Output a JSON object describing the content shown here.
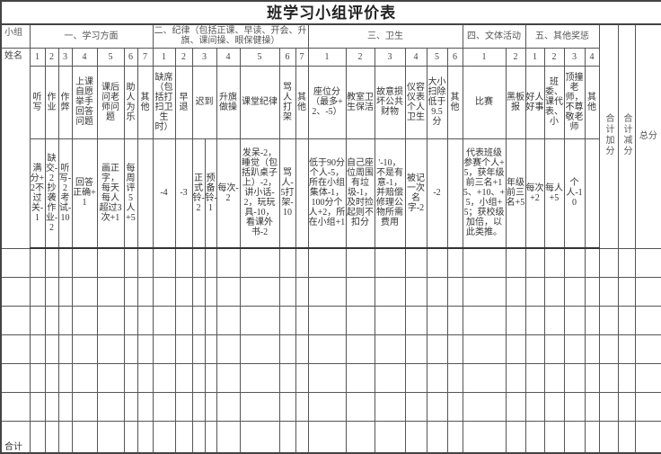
{
  "title": "班学习小组评价表",
  "header": {
    "group_label": "小组",
    "name_label": "姓名",
    "total_plus": "合计加分",
    "total_minus": "合计减分",
    "total": "总分"
  },
  "sections": [
    {
      "title": "一、学习方面",
      "items": [
        {
          "num": "1",
          "label": "听写",
          "rule": "满分+2不过关-1"
        },
        {
          "num": "2",
          "label": "作业",
          "rule": "缺交-2抄袭作业-2"
        },
        {
          "num": "3",
          "label": "作弊",
          "rule": "听写-2考试-10"
        },
        {
          "num": "4",
          "label": "上课自愿举手回答问题",
          "rule": "回答正确+1"
        },
        {
          "num": "5",
          "label": "课后问老师问题",
          "rule": "画正字，每天每人超过3次+1"
        },
        {
          "num": "6",
          "label": "助人为乐",
          "rule": "每周评5人+5"
        },
        {
          "num": "7",
          "label": "其他",
          "rule": ""
        }
      ]
    },
    {
      "title": "二、纪律（包括正课、早读、开会、升旗、课间操、眼保健操）",
      "items": [
        {
          "num": "1",
          "label": "缺席（包括打扫卫生时）",
          "rule": "-4"
        },
        {
          "num": "2",
          "label": "早退",
          "rule": "-3"
        },
        {
          "num": "3",
          "label": "迟到",
          "rules": [
            "正式铃-2",
            "预备铃-1"
          ]
        },
        {
          "num": "4",
          "label": "升旗做操",
          "rule": "每次-2"
        },
        {
          "num": "5",
          "label": "课堂纪律",
          "rule": "发呆-2，睡觉（包括趴桌子上）-2，讲小话-2，玩玩具-10，看课外书-2"
        },
        {
          "num": "6",
          "label": "骂人打架",
          "rule": "骂人-5打架-10"
        },
        {
          "num": "7",
          "label": "其他",
          "rule": ""
        }
      ]
    },
    {
      "title": "三、卫生",
      "items": [
        {
          "num": "1",
          "label": "座位分（最多+2、-5）",
          "rule": "低于90分个人-5，所在小组集体-1，100分个人+2，所在小组+1"
        },
        {
          "num": "2",
          "label": "教室卫生保洁",
          "rule": "自己座位周围有垃圾-1，及时捡起则不扣分"
        },
        {
          "num": "3",
          "label": "故意损坏公共财物",
          "rule": "'-10，不是有意-1，并赔偿修理公物所需费用"
        },
        {
          "num": "4",
          "label": "仪容仪表个人卫生",
          "rule": "被记一次名字-2"
        },
        {
          "num": "5",
          "label": "大小扫除低于9.5分",
          "rule": "-2"
        },
        {
          "num": "6",
          "label": "其他",
          "rule": ""
        }
      ]
    },
    {
      "title": "四、文体活动",
      "items": [
        {
          "num": "1",
          "label": "比赛",
          "rule": "代表班级参赛个人+5，获年级前三名+15、+10、+5，小组+5；获校级加倍，以此类推。"
        },
        {
          "num": "2",
          "label": "黑板报",
          "rule": "年级前三名+5"
        }
      ]
    },
    {
      "title": "五、其他奖惩",
      "items": [
        {
          "num": "1",
          "label": "好人好事",
          "rule": "每次+2"
        },
        {
          "num": "2",
          "label": "班委、课代表、小",
          "rule": "每人+5"
        },
        {
          "num": "3",
          "label": "顶撞老师，不尊敬老师",
          "rule": "个人-10"
        },
        {
          "num": "4",
          "label": "其他",
          "rule": ""
        }
      ]
    }
  ],
  "footer": {
    "total_label": "合计"
  }
}
